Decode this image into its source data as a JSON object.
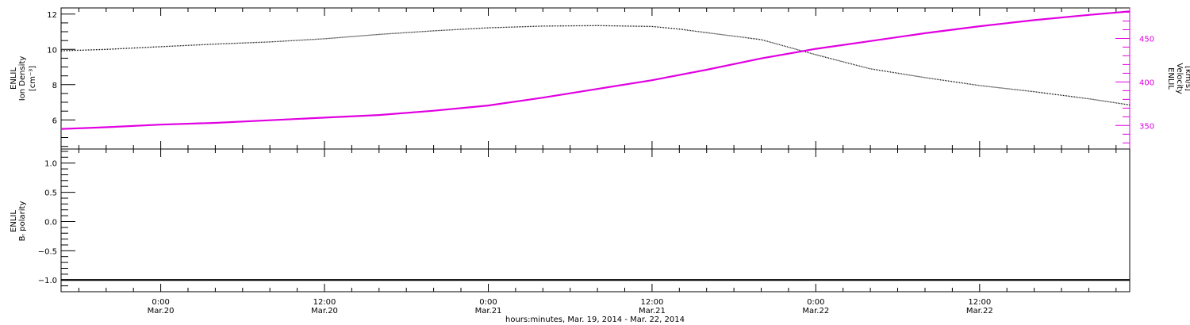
{
  "colors": {
    "density": "#000000",
    "velocity": "#e100e1",
    "polarity": "#000000",
    "axis": "#000000"
  },
  "xaxis": {
    "label": "hours:minutes, Mar. 19, 2014 - Mar. 22, 2014",
    "range_hours": [
      -7.3,
      71.0
    ],
    "ticks": [
      {
        "hour": 0,
        "time": "0:00",
        "date": "Mar.20"
      },
      {
        "hour": 12,
        "time": "12:00",
        "date": "Mar.20"
      },
      {
        "hour": 24,
        "time": "0:00",
        "date": "Mar.21"
      },
      {
        "hour": 36,
        "time": "12:00",
        "date": "Mar.21"
      },
      {
        "hour": 48,
        "time": "0:00",
        "date": "Mar.22"
      },
      {
        "hour": 60,
        "time": "12:00",
        "date": "Mar.22"
      }
    ]
  },
  "chart_data": [
    {
      "type": "line",
      "panel": "top",
      "ylabel_left": [
        "ENLIL",
        "Ion Density",
        "[cm⁻³]"
      ],
      "ylabel_right": [
        "ENLIL",
        "Velocity",
        "[km/s]"
      ],
      "ylim_left": [
        4.35,
        12.35
      ],
      "ylim_right": [
        323,
        485
      ],
      "yticks_left": [
        6,
        8,
        10,
        12
      ],
      "yticks_right": [
        350,
        400,
        450
      ],
      "series": [
        {
          "name": "Ion Density",
          "axis": "left",
          "x": [
            -7.3,
            -4,
            0,
            4,
            8,
            12,
            16,
            20,
            24,
            28,
            32,
            36,
            38,
            40,
            44,
            48,
            52,
            56,
            60,
            64,
            68,
            71
          ],
          "y": [
            9.92,
            10.0,
            10.15,
            10.3,
            10.42,
            10.6,
            10.85,
            11.05,
            11.22,
            11.32,
            11.35,
            11.3,
            11.15,
            10.95,
            10.55,
            9.7,
            8.9,
            8.4,
            7.95,
            7.6,
            7.2,
            6.85
          ]
        },
        {
          "name": "Velocity",
          "axis": "right",
          "x": [
            -7.3,
            -4,
            0,
            4,
            8,
            12,
            16,
            20,
            24,
            28,
            32,
            36,
            40,
            44,
            48,
            52,
            56,
            60,
            64,
            68,
            71
          ],
          "y": [
            346,
            348,
            351,
            353,
            356,
            359,
            362,
            367,
            373,
            382,
            392,
            402,
            414,
            427,
            438,
            447,
            456,
            464,
            471,
            477,
            481
          ]
        }
      ]
    },
    {
      "type": "line",
      "panel": "bottom",
      "ylabel_left": [
        "ENLIL",
        "Bᵣ polarity"
      ],
      "ylim": [
        -1.2,
        1.24
      ],
      "yticks": [
        -1.0,
        -0.5,
        0.0,
        0.5,
        1.0
      ],
      "ytick_labels": [
        "−1.0",
        "−0.5",
        "0.0",
        "0.5",
        "1.0"
      ],
      "series": [
        {
          "name": "Br polarity",
          "x": [
            -7.3,
            71
          ],
          "y": [
            -1.0,
            -1.0
          ]
        }
      ]
    }
  ]
}
